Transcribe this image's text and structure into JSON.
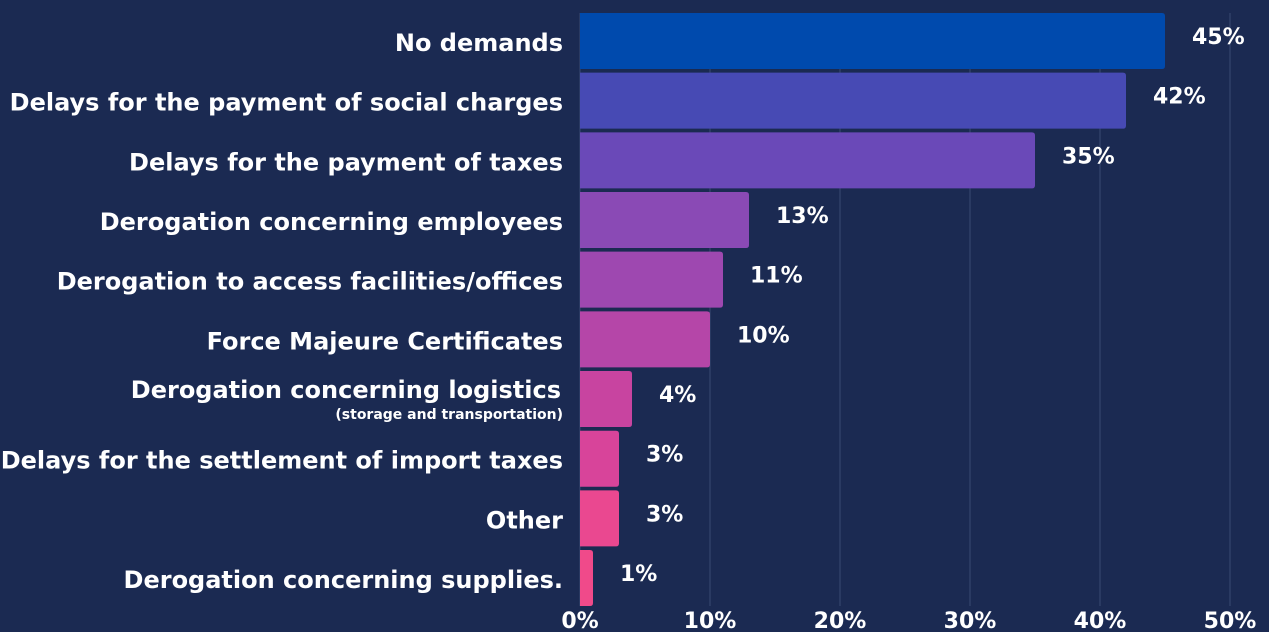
{
  "chart_data": {
    "type": "hbar",
    "categories": [
      "No demands",
      "Delays for the payment of social charges",
      "Delays for the payment of taxes",
      "Derogation concerning employees",
      "Derogation to access facilities/offices",
      "Force Majeure Certificates",
      {
        "label": "Derogation concerning logistics",
        "sublabel": "(storage and transportation)"
      },
      "Delays for the settlement of import taxes",
      "Other",
      "Derogation concerning supplies."
    ],
    "values": [
      45,
      42,
      35,
      13,
      11,
      10,
      4,
      3,
      3,
      1
    ],
    "value_labels": [
      "45%",
      "42%",
      "35%",
      "13%",
      "11%",
      "10%",
      "4%",
      "3%",
      "3%",
      "1%"
    ],
    "colors": [
      "#004aad",
      "#474ab4",
      "#6a49b8",
      "#8a4ab5",
      "#9e48b0",
      "#b546a8",
      "#c844a0",
      "#d8449a",
      "#ea4890",
      "#f04a8a"
    ],
    "xlim": [
      0,
      50
    ],
    "xticks": [
      {
        "value": 0,
        "label": "0%"
      },
      {
        "value": 10,
        "label": "10%"
      },
      {
        "value": 20,
        "label": "20%"
      },
      {
        "value": 30,
        "label": "30%"
      },
      {
        "value": 40,
        "label": "40%"
      },
      {
        "value": 50,
        "label": "50%"
      }
    ],
    "grid": true
  }
}
